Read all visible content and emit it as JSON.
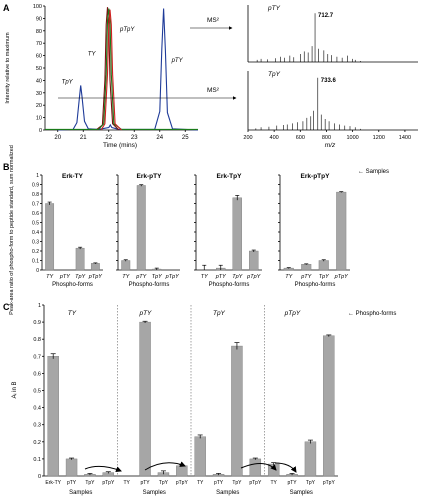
{
  "chart_data": [
    {
      "panel": "A",
      "type": "line",
      "xlabel": "Time (mins)",
      "ylabel": "Intensity relative to maximum",
      "xlim": [
        19.5,
        25.5
      ],
      "ylim": [
        0,
        100
      ],
      "x_ticks": [
        "20",
        "21",
        "22",
        "23",
        "24",
        "25"
      ],
      "y_ticks": [
        "0",
        "10",
        "20",
        "30",
        "40",
        "50",
        "60",
        "70",
        "80",
        "90",
        "100"
      ],
      "peaks": [
        {
          "label": "TpY",
          "x": 20.9,
          "y": 36,
          "color": "#1f3b99"
        },
        {
          "label": "TY",
          "x": 21.95,
          "y": 99,
          "color": "#7a1010"
        },
        {
          "label": "TY",
          "x": 22.0,
          "y": 98,
          "color": "#1a7a1a"
        },
        {
          "label": "pTpY",
          "x": 22.05,
          "y": 97,
          "color": "#d02020"
        },
        {
          "label": "pTY",
          "x": 24.15,
          "y": 98,
          "color": "#1f3b99"
        }
      ],
      "series": [
        {
          "label": "TpY",
          "color": "#1f3b99",
          "x": [
            20.0,
            20.6,
            20.75,
            20.85,
            20.9,
            20.95,
            21.05,
            21.2,
            21.6,
            22.0,
            22.06,
            22.12,
            22.4,
            23.8,
            24.0,
            24.08,
            24.15,
            24.22,
            24.3,
            24.5,
            25.5
          ],
          "y": [
            0,
            0.5,
            6,
            26,
            36,
            27,
            7,
            1,
            0.5,
            2,
            4,
            2,
            0.5,
            0.5,
            15,
            65,
            98,
            64,
            14,
            1,
            0
          ]
        },
        {
          "label": "TY",
          "color": "#7a1010",
          "x": [
            21.5,
            21.75,
            21.85,
            21.9,
            21.95,
            22.0,
            22.05,
            22.15,
            22.4
          ],
          "y": [
            0,
            4,
            40,
            85,
            99,
            84,
            40,
            5,
            0
          ]
        },
        {
          "label": "TY",
          "color": "#1a7a1a",
          "x": [
            19.5,
            21.6,
            21.8,
            21.9,
            21.95,
            22.0,
            22.05,
            22.1,
            22.2,
            22.5,
            25.5
          ],
          "y": [
            0.5,
            0.5,
            5,
            45,
            88,
            98,
            88,
            45,
            5,
            0.5,
            0.5
          ]
        },
        {
          "label": "pTpY",
          "color": "#d02020",
          "x": [
            21.7,
            21.85,
            21.95,
            22.0,
            22.05,
            22.1,
            22.15,
            22.25,
            22.5
          ],
          "y": [
            0,
            5,
            45,
            85,
            97,
            85,
            45,
            5,
            0
          ]
        }
      ],
      "arrows": [
        "MS²",
        "MS²"
      ]
    },
    {
      "panel": "A-MS",
      "type": "bar",
      "xlabel": "m/z",
      "xlim": [
        200,
        1500
      ],
      "x_ticks": [
        "200",
        "400",
        "600",
        "800",
        "1000",
        "1200",
        "1400"
      ],
      "spectra": [
        {
          "label": "pTY",
          "peak_label": "712.7",
          "x": [
            270,
            300,
            350,
            410,
            450,
            480,
            520,
            550,
            600,
            630,
            660,
            690,
            712.7,
            740,
            780,
            810,
            840,
            880,
            920,
            960,
            1000,
            1020,
            1060
          ],
          "y": [
            4,
            6,
            5,
            7,
            10,
            8,
            12,
            9,
            15,
            20,
            18,
            30,
            92,
            25,
            22,
            15,
            13,
            10,
            8,
            12,
            6,
            4,
            2
          ]
        },
        {
          "label": "TpY",
          "peak_label": "733.6",
          "x": [
            260,
            300,
            360,
            420,
            470,
            500,
            540,
            580,
            620,
            650,
            680,
            700,
            733.6,
            760,
            790,
            820,
            860,
            900,
            940,
            980,
            1020,
            1060
          ],
          "y": [
            3,
            5,
            6,
            8,
            9,
            10,
            12,
            14,
            16,
            22,
            25,
            35,
            95,
            28,
            20,
            16,
            12,
            10,
            8,
            7,
            5,
            2
          ]
        }
      ]
    },
    {
      "panel": "B",
      "type": "bar",
      "ylabel": "Peak-area ratio of phospho-form to peptide standard, sum normalized",
      "ylim": [
        0,
        1
      ],
      "y_ticks": [
        "0",
        "0.1",
        "0.2",
        "0.3",
        "0.4",
        "0.5",
        "0.6",
        "0.7",
        "0.8",
        "0.9",
        "1"
      ],
      "xlabel": "Phospho-forms",
      "annotation": "Samples",
      "categories": [
        "TY",
        "pTY",
        "TpY",
        "pTpY"
      ],
      "subplots": [
        {
          "title": "Erk-TY",
          "values": [
            0.7,
            0.0,
            0.23,
            0.07
          ],
          "errors": [
            0.015,
            0,
            0.01,
            0.005
          ]
        },
        {
          "title": "Erk-pTY",
          "values": [
            0.1,
            0.89,
            0.01,
            0.0
          ],
          "errors": [
            0.008,
            0.008,
            0.01,
            0
          ]
        },
        {
          "title": "Erk-TpY",
          "values": [
            0.0,
            0.02,
            0.76,
            0.2
          ],
          "errors": [
            0.05,
            0.03,
            0.025,
            0.01
          ]
        },
        {
          "title": "Erk-pTpY",
          "values": [
            0.02,
            0.06,
            0.1,
            0.82
          ],
          "errors": [
            0.005,
            0.005,
            0.008,
            0.005
          ]
        }
      ]
    },
    {
      "panel": "C",
      "type": "bar",
      "ylabel": "Aᵢ in B",
      "ylim": [
        0,
        1
      ],
      "y_ticks": [
        "0",
        "0.1",
        "0.2",
        "0.3",
        "0.4",
        "0.5",
        "0.6",
        "0.7",
        "0.8",
        "0.9",
        "1"
      ],
      "xlabel": "Samples",
      "annotation": "Phospho-forms",
      "groups": [
        {
          "title": "TY",
          "categories": [
            "Erk-TY",
            "pTY",
            "TpY",
            "pTpY"
          ],
          "values": [
            0.7,
            0.1,
            0.01,
            0.02
          ],
          "errors": [
            0.015,
            0.005,
            0.005,
            0.005
          ]
        },
        {
          "title": "pTY",
          "categories": [
            "TY",
            "pTY",
            "TpY",
            "pTpY"
          ],
          "values": [
            0.0,
            0.9,
            0.02,
            0.06
          ],
          "errors": [
            0,
            0.005,
            0.01,
            0.005
          ]
        },
        {
          "title": "TpY",
          "categories": [
            "TY",
            "pTY",
            "TpY",
            "pTpY"
          ],
          "values": [
            0.23,
            0.01,
            0.76,
            0.1
          ],
          "errors": [
            0.01,
            0.005,
            0.02,
            0.005
          ]
        },
        {
          "title": "pTpY",
          "categories": [
            "TY",
            "pTY",
            "TpY",
            "pTpY"
          ],
          "values": [
            0.07,
            0.01,
            0.2,
            0.82
          ],
          "errors": [
            0.008,
            0.005,
            0.01,
            0.005
          ]
        }
      ]
    }
  ]
}
